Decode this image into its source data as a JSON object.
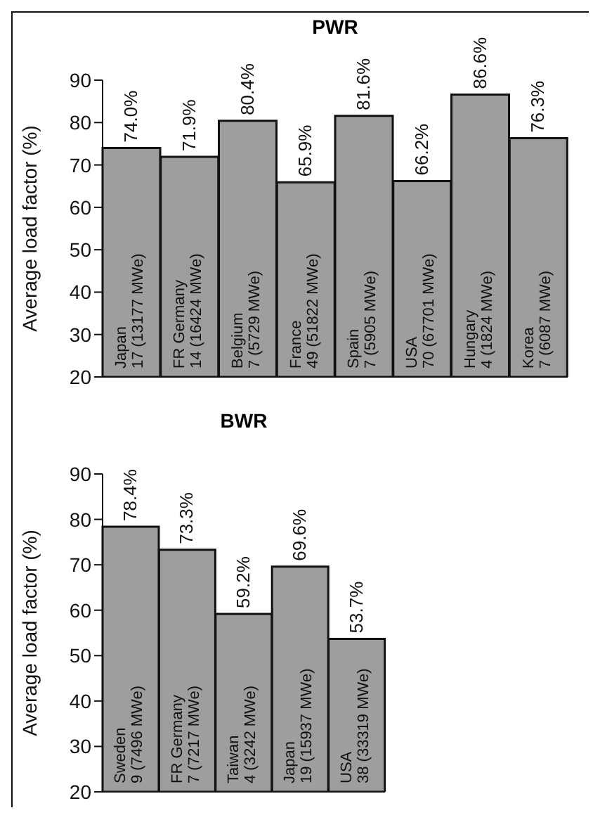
{
  "chart_data": [
    {
      "type": "bar",
      "title": "PWR",
      "ylabel": "Average load factor (%)",
      "categories": [
        "Japan 17 (13177 MWe)",
        "FR Germany 14 (16424 MWe)",
        "Belgium 7 (5729 MWe)",
        "France 49 (51822 MWe)",
        "Spain 7 (5905 MWe)",
        "USA 70 (67701 MWe)",
        "Hungary 4 (1824 MWe)",
        "Korea 7 (6087 MWe)"
      ],
      "values": [
        74.0,
        71.9,
        80.4,
        65.9,
        81.6,
        66.2,
        86.6,
        76.3
      ],
      "value_labels": [
        "74.0%",
        "71.9%",
        "80.4%",
        "65.9%",
        "81.6%",
        "66.2%",
        "86.6%",
        "76.3%"
      ],
      "color": "#9e9e9e",
      "ylim": [
        20,
        90
      ],
      "yticks": [
        20,
        30,
        40,
        50,
        60,
        70,
        80,
        90
      ],
      "grid": false,
      "legend": false
    },
    {
      "type": "bar",
      "title": "BWR",
      "ylabel": "Average load factor (%)",
      "categories": [
        "Sweden 9 (7496 MWe)",
        "FR Germany 7 (7217 MWe)",
        "Taiwan 4 (3242 MWe)",
        "Japan 19 (15937 MWe)",
        "USA 38 (33319 MWe)"
      ],
      "values": [
        78.4,
        73.3,
        59.2,
        69.6,
        53.7
      ],
      "value_labels": [
        "78.4%",
        "73.3%",
        "59.2%",
        "69.6%",
        "53.7%"
      ],
      "color": "#9e9e9e",
      "ylim": [
        20,
        90
      ],
      "yticks": [
        20,
        30,
        40,
        50,
        60,
        70,
        80,
        90
      ],
      "grid": false,
      "legend": false
    }
  ]
}
